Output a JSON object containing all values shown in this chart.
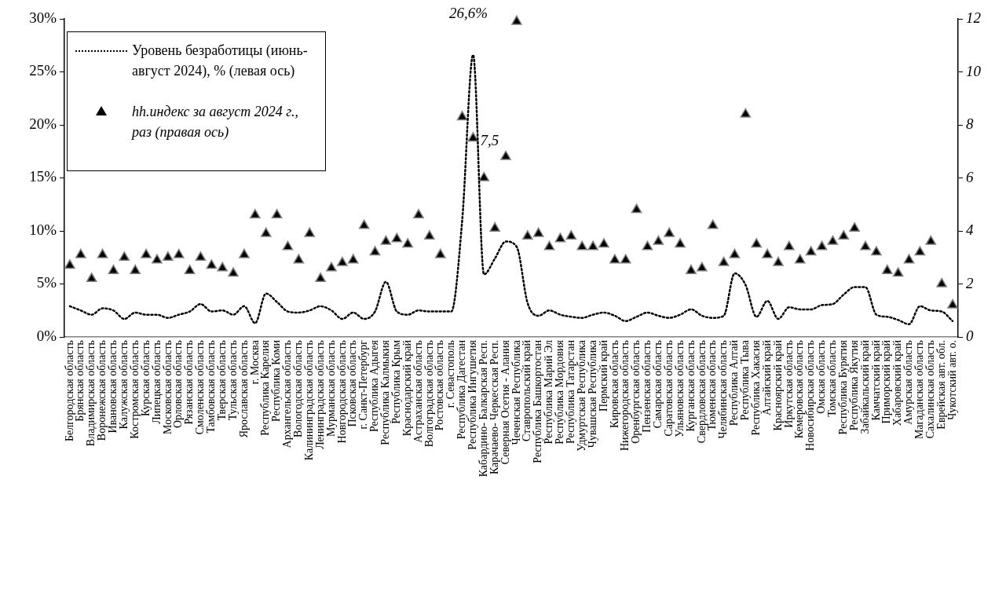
{
  "chart_data": {
    "type": "line",
    "categories": [
      "Белгородская область",
      "Брянская область",
      "Владимирская область",
      "Воронежская область",
      "Ивановская область",
      "Калужская область",
      "Костромская область",
      "Курская область",
      "Липецкая область",
      "Московская область",
      "Орловская область",
      "Рязанская область",
      "Смоленская область",
      "Тамбовская область",
      "Тверская область",
      "Тульская область",
      "Ярославская область",
      "г. Москва",
      "Республика Карелия",
      "Республика Коми",
      "Архангельская область",
      "Вологодская область",
      "Калининградская область",
      "Ленинградская область",
      "Мурманская область",
      "Новгородская область",
      "Псковская область",
      "г. Санкт-Петербург",
      "Республика Адыгея",
      "Республика Калмыкия",
      "Республика Крым",
      "Краснодарский край",
      "Астраханская область",
      "Волгоградская область",
      "Ростовская область",
      "г. Севастополь",
      "Республика Дагестан",
      "Республика Ингушетия",
      "Кабардино- Балкарская Респ.",
      "Карачаево- Черкесская Респ.",
      "Северная Осетия - Алания",
      "Чеченская Республика",
      "Ставропольский край",
      "Республика Башкортостан",
      "Республика Марий Эл",
      "Республика Мордовия",
      "Республика Татарстан",
      "Удмуртская Республика",
      "Чувашская Республика",
      "Пермский край",
      "Кировская область",
      "Нижегородская область",
      "Оренбургская область",
      "Пензенская область",
      "Самарская область",
      "Саратовская область",
      "Ульяновская область",
      "Курганская область",
      "Свердловская область",
      "Тюменская область",
      "Челябинская область",
      "Республика Алтай",
      "Республика Тыва",
      "Республика Хакасия",
      "Алтайский край",
      "Красноярский край",
      "Иркутская область",
      "Кемеровская область",
      "Новосибирская область",
      "Омская область",
      "Томская область",
      "Республика Бурятия",
      "Республика Якутия",
      "Забайкальский край",
      "Камчатский край",
      "Приморский край",
      "Хабаровский край",
      "Амурская область",
      "Магаданская область",
      "Сахалинская область",
      "Еврейская авт. обл.",
      "Чукотский авт. о."
    ],
    "series": [
      {
        "name": "Уровень безработицы (июнь-август 2024), % (левая ось)",
        "color": "#000000",
        "line_style": "dotted",
        "marker": "none",
        "values": [
          2.9,
          2.5,
          2.1,
          2.7,
          2.5,
          1.7,
          2.3,
          2.1,
          2.1,
          1.8,
          2.1,
          2.4,
          3.1,
          2.4,
          2.5,
          2.1,
          2.9,
          1.3,
          4.1,
          3.3,
          2.4,
          2.3,
          2.5,
          2.9,
          2.5,
          1.7,
          2.3,
          1.7,
          2.4,
          5.2,
          2.4,
          2.1,
          2.5,
          2.4,
          2.4,
          2.4,
          11,
          26.6,
          5.9,
          7.4,
          9.0,
          8.5,
          3.2,
          2.0,
          2.5,
          2.1,
          1.9,
          1.8,
          2.1,
          2.3,
          2.0,
          1.5,
          1.9,
          2.3,
          2.0,
          1.8,
          2.1,
          2.6,
          2.0,
          1.8,
          2.0,
          6.0,
          4.9,
          1.9,
          3.4,
          1.7,
          2.8,
          2.6,
          2.6,
          3.0,
          3.1,
          4.0,
          4.7,
          4.7,
          2.1,
          1.9,
          1.6,
          1.2,
          2.9,
          2.5,
          2.4,
          1.5
        ],
        "value_labels": [
          null,
          null,
          null,
          null,
          null,
          null,
          null,
          null,
          null,
          null,
          null,
          null,
          null,
          null,
          null,
          null,
          null,
          null,
          null,
          null,
          null,
          null,
          null,
          null,
          null,
          null,
          null,
          null,
          null,
          null,
          null,
          null,
          null,
          null,
          null,
          null,
          null,
          "26,6%",
          null,
          null,
          null,
          null,
          null,
          null,
          null,
          null,
          null,
          null,
          null,
          null,
          null,
          null,
          null,
          null,
          null,
          null,
          null,
          null,
          null,
          null,
          null,
          null,
          null,
          null,
          null,
          null,
          null,
          null,
          null,
          null,
          null,
          null,
          null,
          null,
          null,
          null,
          null,
          null,
          null,
          null,
          null,
          null
        ]
      },
      {
        "name": "hh.индекс за август 2024 г., раз (правая ось)",
        "type": "scatter",
        "axis": "y2",
        "color": "#000000",
        "marker": "triangle",
        "values": [
          2.7,
          3.1,
          2.2,
          3.1,
          2.5,
          3.0,
          2.5,
          3.1,
          2.9,
          3.0,
          3.1,
          2.5,
          3.0,
          2.7,
          2.6,
          2.4,
          3.1,
          4.6,
          3.9,
          4.6,
          3.4,
          2.9,
          3.9,
          2.2,
          2.6,
          2.8,
          2.9,
          4.2,
          3.2,
          3.6,
          3.7,
          3.5,
          4.6,
          3.8,
          3.1,
          null,
          8.3,
          7.5,
          6.0,
          4.1,
          6.8,
          11.9,
          3.8,
          3.9,
          3.4,
          3.7,
          3.8,
          3.4,
          3.4,
          3.5,
          2.9,
          2.9,
          4.8,
          3.4,
          3.6,
          3.9,
          3.5,
          2.5,
          2.6,
          4.2,
          2.8,
          3.1,
          8.4,
          3.5,
          3.1,
          2.8,
          3.4,
          2.9,
          3.2,
          3.4,
          3.6,
          3.8,
          4.1,
          3.4,
          3.2,
          2.5,
          2.4,
          2.9,
          3.2,
          3.6,
          2.0,
          1.2
        ],
        "value_labels": [
          null,
          null,
          null,
          null,
          null,
          null,
          null,
          null,
          null,
          null,
          null,
          null,
          null,
          null,
          null,
          null,
          null,
          null,
          null,
          null,
          null,
          null,
          null,
          null,
          null,
          null,
          null,
          null,
          null,
          null,
          null,
          null,
          null,
          null,
          null,
          null,
          null,
          "7,5",
          null,
          null,
          null,
          null,
          null,
          null,
          null,
          null,
          null,
          null,
          null,
          null,
          null,
          null,
          null,
          null,
          null,
          null,
          null,
          null,
          null,
          null,
          null,
          null,
          null,
          null,
          null,
          null,
          null,
          null,
          null,
          null,
          null,
          null,
          null,
          null,
          null,
          null,
          null,
          null,
          null,
          null,
          null,
          null
        ]
      }
    ],
    "ylim": [
      0,
      30
    ],
    "yticks": [
      {
        "value": 0,
        "label": "0%"
      },
      {
        "value": 5,
        "label": "5%"
      },
      {
        "value": 10,
        "label": "10%"
      },
      {
        "value": 15,
        "label": "15%"
      },
      {
        "value": 20,
        "label": "20%"
      },
      {
        "value": 25,
        "label": "25%"
      },
      {
        "value": 30,
        "label": "30%"
      }
    ],
    "y2lim": [
      0,
      12
    ],
    "y2ticks": [
      0,
      2,
      4,
      6,
      8,
      10,
      12
    ],
    "grid": false,
    "legend": "top left"
  }
}
